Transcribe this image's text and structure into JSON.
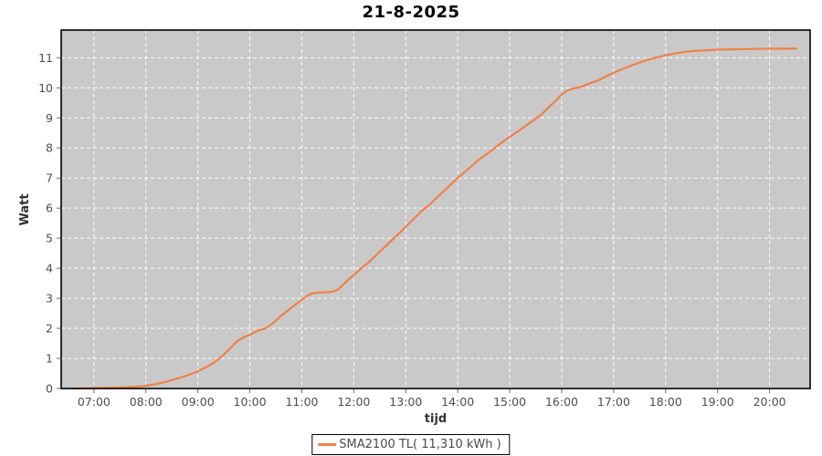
{
  "title": "21-8-2025",
  "colors": {
    "background": "#FFFFFF",
    "plot_background": "#C9C9C9",
    "grid": "#FFFFFF",
    "plot_border": "#000000",
    "tick_mark": "#666666",
    "tick_text": "#4D4D4D",
    "axis_label_text": "#333333",
    "series_orange": "#F08048",
    "legend_border": "#000000",
    "legend_text": "#4A4A4A"
  },
  "chart_data": {
    "type": "line",
    "title": "21-8-2025",
    "xlabel": "tijd",
    "ylabel": "Watt",
    "x_tick_hours": [
      7,
      8,
      9,
      10,
      11,
      12,
      13,
      14,
      15,
      16,
      17,
      18,
      19,
      20
    ],
    "x_tick_labels": [
      "07:00",
      "08:00",
      "09:00",
      "10:00",
      "11:00",
      "12:00",
      "13:00",
      "14:00",
      "15:00",
      "16:00",
      "17:00",
      "18:00",
      "19:00",
      "20:00"
    ],
    "y_ticks": [
      0,
      1,
      2,
      3,
      4,
      5,
      6,
      7,
      8,
      9,
      10,
      11
    ],
    "xlim_hours": [
      6.37,
      20.78
    ],
    "ylim": [
      0,
      11.92
    ],
    "grid": true,
    "grid_style": "dashed",
    "legend_position": "bottom-center",
    "series": [
      {
        "name": "SMA2100 TL( 11,310 kWh )",
        "color": "#F08048",
        "total_kwh_label": "11,310 kWh",
        "points": [
          [
            6.58,
            0.0
          ],
          [
            6.9,
            0.01
          ],
          [
            7.2,
            0.02
          ],
          [
            7.45,
            0.03
          ],
          [
            7.6,
            0.04
          ],
          [
            7.8,
            0.06
          ],
          [
            8.0,
            0.09
          ],
          [
            8.2,
            0.15
          ],
          [
            8.4,
            0.23
          ],
          [
            8.6,
            0.33
          ],
          [
            8.8,
            0.44
          ],
          [
            9.0,
            0.57
          ],
          [
            9.15,
            0.7
          ],
          [
            9.3,
            0.85
          ],
          [
            9.45,
            1.05
          ],
          [
            9.6,
            1.3
          ],
          [
            9.76,
            1.58
          ],
          [
            9.9,
            1.72
          ],
          [
            10.0,
            1.79
          ],
          [
            10.15,
            1.92
          ],
          [
            10.3,
            2.0
          ],
          [
            10.45,
            2.18
          ],
          [
            10.6,
            2.42
          ],
          [
            10.75,
            2.62
          ],
          [
            10.9,
            2.82
          ],
          [
            11.0,
            2.95
          ],
          [
            11.1,
            3.08
          ],
          [
            11.2,
            3.16
          ],
          [
            11.3,
            3.19
          ],
          [
            11.45,
            3.2
          ],
          [
            11.6,
            3.22
          ],
          [
            11.7,
            3.3
          ],
          [
            11.85,
            3.55
          ],
          [
            12.0,
            3.78
          ],
          [
            12.15,
            4.0
          ],
          [
            12.3,
            4.22
          ],
          [
            12.5,
            4.55
          ],
          [
            12.7,
            4.88
          ],
          [
            12.85,
            5.12
          ],
          [
            13.0,
            5.38
          ],
          [
            13.2,
            5.72
          ],
          [
            13.3,
            5.9
          ],
          [
            13.45,
            6.1
          ],
          [
            13.6,
            6.35
          ],
          [
            13.8,
            6.68
          ],
          [
            14.0,
            7.0
          ],
          [
            14.2,
            7.3
          ],
          [
            14.4,
            7.6
          ],
          [
            14.6,
            7.85
          ],
          [
            14.8,
            8.12
          ],
          [
            15.0,
            8.37
          ],
          [
            15.2,
            8.6
          ],
          [
            15.4,
            8.85
          ],
          [
            15.6,
            9.1
          ],
          [
            15.75,
            9.35
          ],
          [
            15.9,
            9.6
          ],
          [
            16.0,
            9.78
          ],
          [
            16.1,
            9.9
          ],
          [
            16.2,
            9.97
          ],
          [
            16.35,
            10.02
          ],
          [
            16.5,
            10.12
          ],
          [
            16.7,
            10.25
          ],
          [
            17.0,
            10.5
          ],
          [
            17.2,
            10.65
          ],
          [
            17.4,
            10.78
          ],
          [
            17.6,
            10.9
          ],
          [
            17.8,
            11.0
          ],
          [
            18.0,
            11.08
          ],
          [
            18.2,
            11.15
          ],
          [
            18.4,
            11.2
          ],
          [
            18.6,
            11.23
          ],
          [
            18.8,
            11.25
          ],
          [
            19.0,
            11.27
          ],
          [
            19.3,
            11.28
          ],
          [
            19.6,
            11.29
          ],
          [
            20.0,
            11.3
          ],
          [
            20.3,
            11.3
          ],
          [
            20.51,
            11.31
          ]
        ]
      }
    ]
  }
}
